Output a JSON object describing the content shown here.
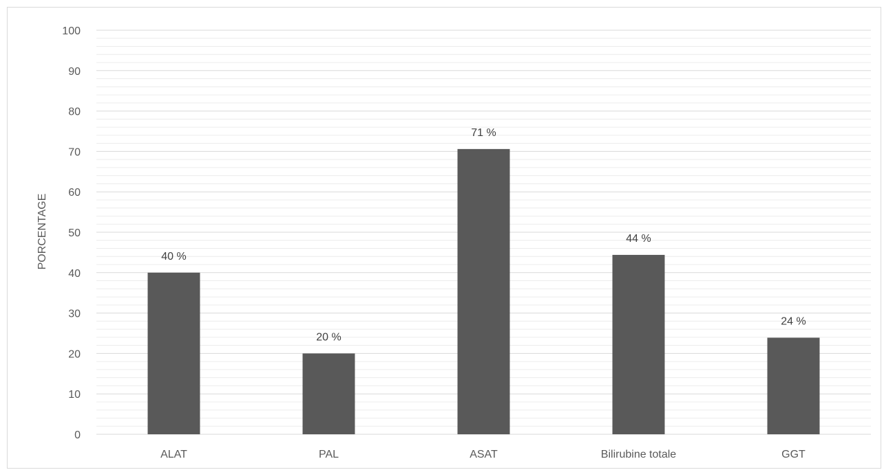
{
  "chart_data": {
    "type": "bar",
    "title": "",
    "xlabel": "",
    "ylabel": "PORCENTAGE",
    "categories": [
      "ALAT",
      "PAL",
      "ASAT",
      "Bilirubine totale",
      "GGT"
    ],
    "values": [
      40,
      20,
      70.6,
      44.4,
      23.9
    ],
    "data_labels": [
      "40 %",
      "20 %",
      "71 %",
      "44 %",
      "24 %"
    ],
    "y_ticks": [
      "0",
      "10",
      "20",
      "30",
      "40",
      "50",
      "60",
      "70",
      "80",
      "90",
      "100"
    ],
    "ylim": [
      0,
      100
    ],
    "major_tick_step": 10,
    "minor_tick_step": 2,
    "grid": true,
    "legend": "none",
    "bar_color": "#595959",
    "major_grid_color": "#d9d9d9",
    "minor_grid_color": "#ececec"
  }
}
